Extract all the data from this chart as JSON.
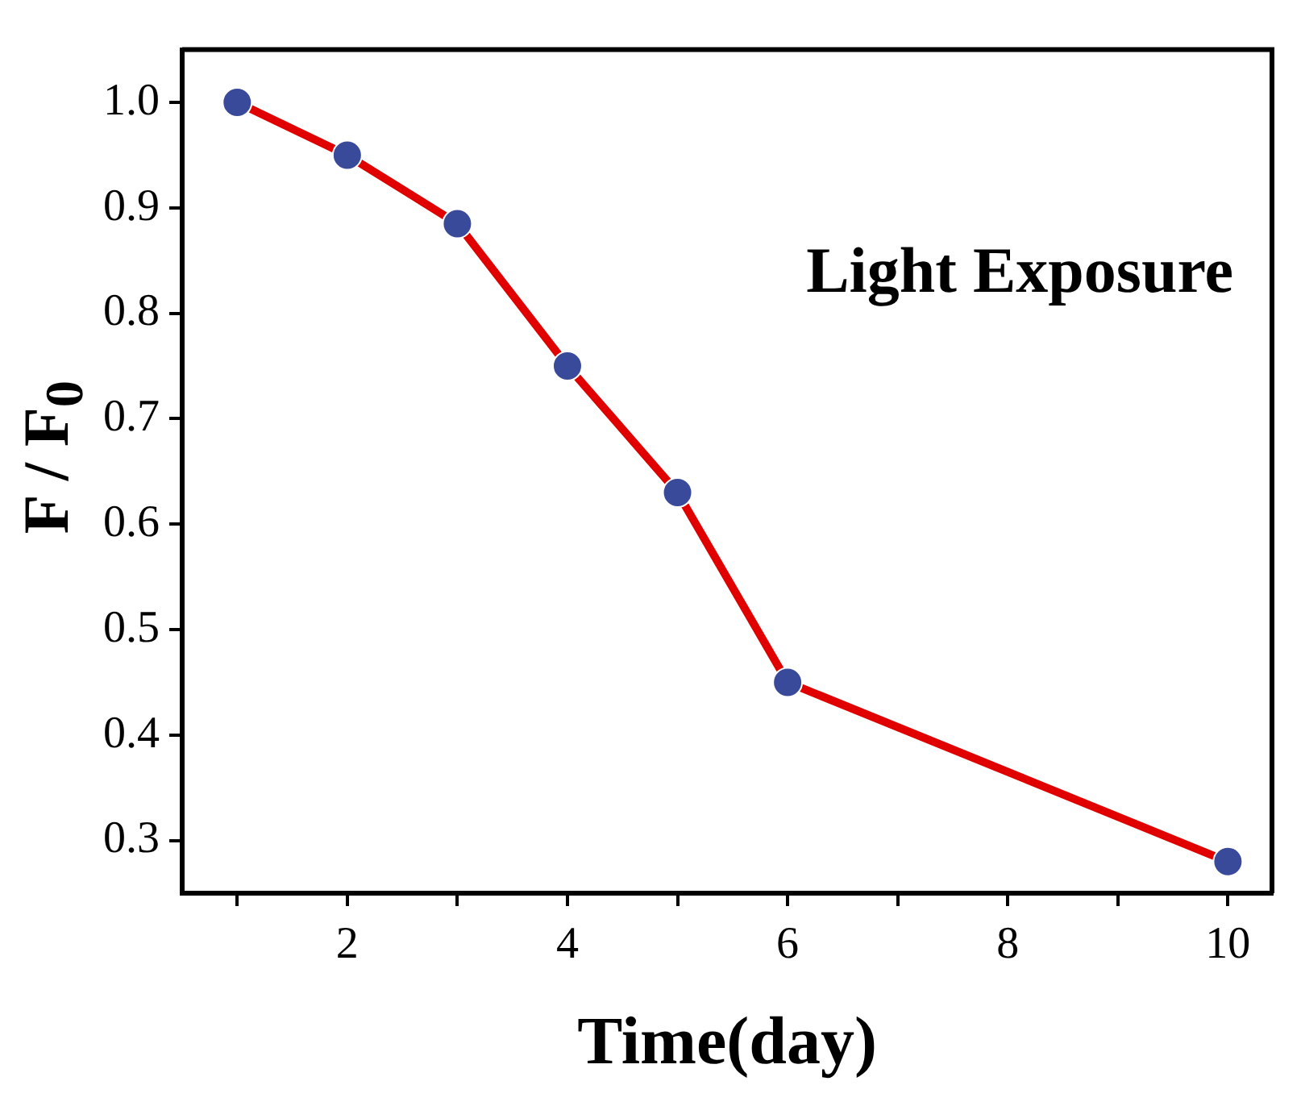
{
  "chart_data": {
    "type": "line",
    "xlabel": "Time(day)",
    "ylabel": "F / F$_{0}$",
    "annotations": [
      "Light Exposure"
    ],
    "x": [
      1,
      2,
      3,
      4,
      5,
      6,
      10
    ],
    "series": [
      {
        "color": "#e00000",
        "values": [
          1.0,
          0.95,
          0.885,
          0.75,
          0.63,
          0.45,
          0.28
        ]
      }
    ],
    "xlim": [
      0.5,
      10.4
    ],
    "xticks": [
      {
        "value": 1,
        "label": null
      },
      2,
      {
        "value": 3,
        "label": null
      },
      4,
      {
        "value": 5,
        "label": null
      },
      6,
      {
        "value": 7,
        "label": null
      },
      8,
      {
        "value": 9,
        "label": null
      },
      10
    ],
    "ylim": [
      0.25,
      1.05
    ],
    "yticks": [
      0.3,
      0.4,
      0.5,
      0.6,
      0.7,
      0.8,
      0.9,
      {
        "value": 1,
        "label": "1.0"
      }
    ],
    "marker": "circle",
    "line_style": "solid",
    "grid": false,
    "legend": false
  }
}
